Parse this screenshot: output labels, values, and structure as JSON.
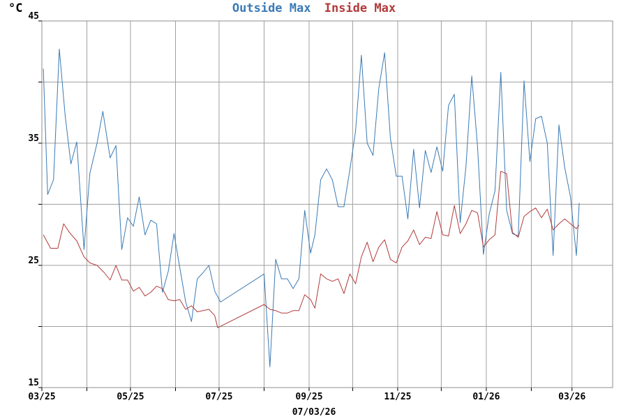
{
  "chart_data": {
    "type": "line",
    "title_parts": [
      {
        "text": "Outside Max",
        "color": "#3a7ab5"
      },
      {
        "text": "Inside Max",
        "color": "#b23a3a"
      }
    ],
    "unit_label": "°C",
    "xlabel": "07/03/26",
    "ylim": [
      15,
      45
    ],
    "y_ticks": [
      15,
      20,
      25,
      30,
      35,
      40,
      45
    ],
    "y_tick_labels": [
      {
        "value": 15,
        "label": "15"
      },
      {
        "value": 25,
        "label": "25"
      },
      {
        "value": 35,
        "label": "35"
      },
      {
        "value": 45,
        "label": "45"
      }
    ],
    "x_range": [
      "2025-03-01",
      "2026-03-29"
    ],
    "x_ticks": [
      "2025-03-01",
      "2025-04-01",
      "2025-05-01",
      "2025-06-01",
      "2025-07-01",
      "2025-08-01",
      "2025-09-01",
      "2025-10-01",
      "2025-11-01",
      "2025-12-01",
      "2026-01-01",
      "2026-02-01",
      "2026-03-01"
    ],
    "x_tick_labels": [
      {
        "date": "2025-03-01",
        "label": "03/25"
      },
      {
        "date": "2025-05-01",
        "label": "05/25"
      },
      {
        "date": "2025-07-01",
        "label": "07/25"
      },
      {
        "date": "2025-09-01",
        "label": "09/25"
      },
      {
        "date": "2025-11-01",
        "label": "11/25"
      },
      {
        "date": "2026-01-01",
        "label": "01/26"
      },
      {
        "date": "2026-03-01",
        "label": "03/26"
      }
    ],
    "grid": true,
    "series": [
      {
        "name": "Outside Max",
        "color": "#3a7ab5",
        "points": [
          [
            "2025-03-02",
            41.1
          ],
          [
            "2025-03-05",
            30.8
          ],
          [
            "2025-03-09",
            32.0
          ],
          [
            "2025-03-13",
            42.7
          ],
          [
            "2025-03-17",
            37.3
          ],
          [
            "2025-03-21",
            33.3
          ],
          [
            "2025-03-25",
            35.1
          ],
          [
            "2025-03-30",
            26.3
          ],
          [
            "2025-04-03",
            32.5
          ],
          [
            "2025-04-08",
            35.0
          ],
          [
            "2025-04-12",
            37.6
          ],
          [
            "2025-04-17",
            33.8
          ],
          [
            "2025-04-21",
            34.8
          ],
          [
            "2025-04-25",
            26.3
          ],
          [
            "2025-04-29",
            28.9
          ],
          [
            "2025-05-03",
            28.2
          ],
          [
            "2025-05-07",
            30.6
          ],
          [
            "2025-05-11",
            27.5
          ],
          [
            "2025-05-15",
            28.7
          ],
          [
            "2025-05-19",
            28.4
          ],
          [
            "2025-05-23",
            22.8
          ],
          [
            "2025-05-27",
            24.5
          ],
          [
            "2025-05-31",
            27.6
          ],
          [
            "2025-06-04",
            24.8
          ],
          [
            "2025-06-08",
            22.0
          ],
          [
            "2025-06-12",
            20.4
          ],
          [
            "2025-06-16",
            23.9
          ],
          [
            "2025-06-20",
            24.4
          ],
          [
            "2025-06-24",
            25.0
          ],
          [
            "2025-06-28",
            22.9
          ],
          [
            "2025-07-02",
            22.0
          ],
          [
            "2025-08-01",
            24.3
          ],
          [
            "2025-08-05",
            16.7
          ],
          [
            "2025-08-09",
            25.5
          ],
          [
            "2025-08-13",
            23.9
          ],
          [
            "2025-08-17",
            23.9
          ],
          [
            "2025-08-21",
            23.1
          ],
          [
            "2025-08-25",
            23.9
          ],
          [
            "2025-08-29",
            29.5
          ],
          [
            "2025-09-02",
            26.0
          ],
          [
            "2025-09-05",
            27.5
          ],
          [
            "2025-09-09",
            32.0
          ],
          [
            "2025-09-13",
            32.9
          ],
          [
            "2025-09-17",
            32.0
          ],
          [
            "2025-09-21",
            29.8
          ],
          [
            "2025-09-25",
            29.8
          ],
          [
            "2025-09-29",
            32.8
          ],
          [
            "2025-10-03",
            36.0
          ],
          [
            "2025-10-07",
            42.2
          ],
          [
            "2025-10-11",
            35.0
          ],
          [
            "2025-10-15",
            34.0
          ],
          [
            "2025-10-19",
            39.5
          ],
          [
            "2025-10-23",
            42.4
          ],
          [
            "2025-10-27",
            35.4
          ],
          [
            "2025-10-31",
            32.3
          ],
          [
            "2025-11-04",
            32.3
          ],
          [
            "2025-11-08",
            28.8
          ],
          [
            "2025-11-12",
            34.5
          ],
          [
            "2025-11-16",
            29.7
          ],
          [
            "2025-11-20",
            34.4
          ],
          [
            "2025-11-24",
            32.6
          ],
          [
            "2025-11-28",
            34.7
          ],
          [
            "2025-12-02",
            32.7
          ],
          [
            "2025-12-06",
            38.1
          ],
          [
            "2025-12-10",
            39.0
          ],
          [
            "2025-12-14",
            28.5
          ],
          [
            "2025-12-18",
            33.1
          ],
          [
            "2025-12-22",
            40.5
          ],
          [
            "2025-12-26",
            34.7
          ],
          [
            "2025-12-30",
            25.9
          ],
          [
            "2026-01-03",
            29.2
          ],
          [
            "2026-01-07",
            31.1
          ],
          [
            "2026-01-11",
            40.8
          ],
          [
            "2026-01-15",
            29.5
          ],
          [
            "2026-01-19",
            27.6
          ],
          [
            "2026-01-23",
            27.4
          ],
          [
            "2026-01-27",
            40.1
          ],
          [
            "2026-01-31",
            33.5
          ],
          [
            "2026-02-04",
            37.0
          ],
          [
            "2026-02-08",
            37.2
          ],
          [
            "2026-02-12",
            35.0
          ],
          [
            "2026-02-16",
            25.8
          ],
          [
            "2026-02-20",
            36.5
          ],
          [
            "2026-02-24",
            33.0
          ],
          [
            "2026-02-28",
            30.6
          ],
          [
            "2026-03-04",
            25.8
          ],
          [
            "2026-03-06",
            30.1
          ]
        ]
      },
      {
        "name": "Inside Max",
        "color": "#b23a3a",
        "points": [
          [
            "2025-03-02",
            27.5
          ],
          [
            "2025-03-07",
            26.4
          ],
          [
            "2025-03-12",
            26.4
          ],
          [
            "2025-03-16",
            28.4
          ],
          [
            "2025-03-20",
            27.7
          ],
          [
            "2025-03-25",
            27.0
          ],
          [
            "2025-03-30",
            25.7
          ],
          [
            "2025-04-03",
            25.2
          ],
          [
            "2025-04-08",
            25.0
          ],
          [
            "2025-04-13",
            24.4
          ],
          [
            "2025-04-17",
            23.8
          ],
          [
            "2025-04-21",
            25.0
          ],
          [
            "2025-04-25",
            23.8
          ],
          [
            "2025-04-29",
            23.8
          ],
          [
            "2025-05-03",
            22.9
          ],
          [
            "2025-05-07",
            23.2
          ],
          [
            "2025-05-11",
            22.5
          ],
          [
            "2025-05-15",
            22.8
          ],
          [
            "2025-05-19",
            23.3
          ],
          [
            "2025-05-23",
            23.1
          ],
          [
            "2025-05-27",
            22.2
          ],
          [
            "2025-05-31",
            22.1
          ],
          [
            "2025-06-04",
            22.2
          ],
          [
            "2025-06-08",
            21.4
          ],
          [
            "2025-06-12",
            21.7
          ],
          [
            "2025-06-16",
            21.2
          ],
          [
            "2025-06-20",
            21.3
          ],
          [
            "2025-06-24",
            21.4
          ],
          [
            "2025-06-28",
            20.9
          ],
          [
            "2025-06-30",
            19.9
          ],
          [
            "2025-08-01",
            21.8
          ],
          [
            "2025-08-05",
            21.4
          ],
          [
            "2025-08-09",
            21.3
          ],
          [
            "2025-08-13",
            21.1
          ],
          [
            "2025-08-17",
            21.1
          ],
          [
            "2025-08-21",
            21.3
          ],
          [
            "2025-08-25",
            21.3
          ],
          [
            "2025-08-29",
            22.6
          ],
          [
            "2025-09-02",
            22.2
          ],
          [
            "2025-09-05",
            21.5
          ],
          [
            "2025-09-09",
            24.3
          ],
          [
            "2025-09-13",
            23.9
          ],
          [
            "2025-09-17",
            23.7
          ],
          [
            "2025-09-21",
            23.9
          ],
          [
            "2025-09-25",
            22.7
          ],
          [
            "2025-09-29",
            24.3
          ],
          [
            "2025-10-03",
            23.5
          ],
          [
            "2025-10-07",
            25.7
          ],
          [
            "2025-10-11",
            26.9
          ],
          [
            "2025-10-15",
            25.3
          ],
          [
            "2025-10-19",
            26.5
          ],
          [
            "2025-10-23",
            27.1
          ],
          [
            "2025-10-27",
            25.5
          ],
          [
            "2025-10-31",
            25.2
          ],
          [
            "2025-11-04",
            26.5
          ],
          [
            "2025-11-08",
            27.0
          ],
          [
            "2025-11-12",
            27.9
          ],
          [
            "2025-11-16",
            26.7
          ],
          [
            "2025-11-20",
            27.3
          ],
          [
            "2025-11-24",
            27.2
          ],
          [
            "2025-11-28",
            29.4
          ],
          [
            "2025-12-02",
            27.5
          ],
          [
            "2025-12-06",
            27.4
          ],
          [
            "2025-12-10",
            29.9
          ],
          [
            "2025-12-14",
            27.6
          ],
          [
            "2025-12-18",
            28.4
          ],
          [
            "2025-12-22",
            29.5
          ],
          [
            "2025-12-26",
            29.3
          ],
          [
            "2025-12-30",
            26.5
          ],
          [
            "2026-01-03",
            27.1
          ],
          [
            "2026-01-07",
            27.5
          ],
          [
            "2026-01-11",
            32.7
          ],
          [
            "2026-01-15",
            32.5
          ],
          [
            "2026-01-19",
            27.7
          ],
          [
            "2026-01-23",
            27.3
          ],
          [
            "2026-01-27",
            29.0
          ],
          [
            "2026-01-31",
            29.4
          ],
          [
            "2026-02-04",
            29.7
          ],
          [
            "2026-02-08",
            28.9
          ],
          [
            "2026-02-12",
            29.6
          ],
          [
            "2026-02-16",
            27.9
          ],
          [
            "2026-02-20",
            28.4
          ],
          [
            "2026-02-24",
            28.8
          ],
          [
            "2026-02-28",
            28.4
          ],
          [
            "2026-03-04",
            28.0
          ],
          [
            "2026-03-06",
            28.3
          ]
        ]
      }
    ]
  }
}
